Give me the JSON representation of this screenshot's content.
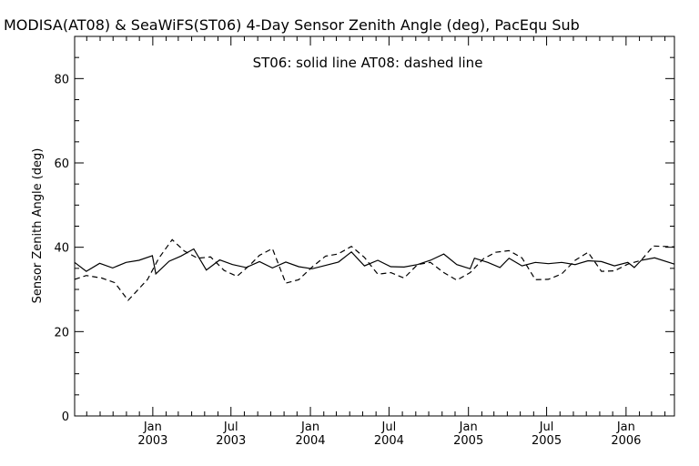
{
  "chart_data": {
    "type": "line",
    "title": "MODISA(AT08) & SeaWiFS(ST06) 4-Day Sensor Zenith Angle (deg), PacEqu Sub",
    "ylabel": "Sensor Zenith Angle (deg)",
    "xlabel": "",
    "legend_text": "ST06: solid line    AT08: dashed line",
    "ylim": [
      0,
      90
    ],
    "xlim": [
      "2002-07-04",
      "2006-04-23"
    ],
    "y_ticks": [
      "0",
      "20",
      "40",
      "60",
      "80"
    ],
    "y_tick_values": [
      0,
      20,
      40,
      60,
      80
    ],
    "x_ticks": [
      {
        "month": "Jan",
        "year": "2003",
        "date": "2003-01-01"
      },
      {
        "month": "Jul",
        "year": "2003",
        "date": "2003-07-01"
      },
      {
        "month": "Jan",
        "year": "2004",
        "date": "2004-01-01"
      },
      {
        "month": "Jul",
        "year": "2004",
        "date": "2004-07-01"
      },
      {
        "month": "Jan",
        "year": "2005",
        "date": "2005-01-01"
      },
      {
        "month": "Jul",
        "year": "2005",
        "date": "2005-07-01"
      },
      {
        "month": "Jan",
        "year": "2006",
        "date": "2006-01-01"
      }
    ],
    "grid": false,
    "series": [
      {
        "name": "ST06",
        "style": "solid",
        "color": "#000000",
        "points": [
          [
            "2002-07-04",
            36.4
          ],
          [
            "2002-07-31",
            34.3
          ],
          [
            "2002-08-31",
            36.2
          ],
          [
            "2002-09-30",
            35.1
          ],
          [
            "2002-10-31",
            36.4
          ],
          [
            "2002-11-30",
            36.9
          ],
          [
            "2002-12-31",
            38.0
          ],
          [
            "2003-01-08",
            33.7
          ],
          [
            "2003-02-08",
            36.7
          ],
          [
            "2003-03-07",
            37.9
          ],
          [
            "2003-04-06",
            39.6
          ],
          [
            "2003-05-05",
            34.6
          ],
          [
            "2003-06-05",
            37.0
          ],
          [
            "2003-07-05",
            35.9
          ],
          [
            "2003-08-05",
            35.2
          ],
          [
            "2003-09-05",
            36.6
          ],
          [
            "2003-10-05",
            35.1
          ],
          [
            "2003-11-05",
            36.5
          ],
          [
            "2003-12-05",
            35.4
          ],
          [
            "2004-01-05",
            34.9
          ],
          [
            "2004-02-05",
            35.7
          ],
          [
            "2004-03-06",
            36.5
          ],
          [
            "2004-04-05",
            38.9
          ],
          [
            "2004-05-05",
            35.6
          ],
          [
            "2004-06-05",
            36.9
          ],
          [
            "2004-07-05",
            35.4
          ],
          [
            "2004-08-05",
            35.3
          ],
          [
            "2004-09-05",
            35.9
          ],
          [
            "2004-10-05",
            36.9
          ],
          [
            "2004-11-05",
            38.4
          ],
          [
            "2004-12-05",
            35.9
          ],
          [
            "2005-01-05",
            34.9
          ],
          [
            "2005-01-15",
            37.4
          ],
          [
            "2005-02-15",
            36.4
          ],
          [
            "2005-03-15",
            35.2
          ],
          [
            "2005-04-05",
            37.4
          ],
          [
            "2005-05-05",
            35.6
          ],
          [
            "2005-06-05",
            36.4
          ],
          [
            "2005-07-05",
            36.1
          ],
          [
            "2005-08-05",
            36.4
          ],
          [
            "2005-09-05",
            35.9
          ],
          [
            "2005-10-05",
            36.8
          ],
          [
            "2005-11-05",
            36.6
          ],
          [
            "2005-12-05",
            35.6
          ],
          [
            "2006-01-05",
            36.4
          ],
          [
            "2006-01-20",
            35.2
          ],
          [
            "2006-02-05",
            36.9
          ],
          [
            "2006-03-08",
            37.5
          ],
          [
            "2006-04-23",
            36.0
          ]
        ]
      },
      {
        "name": "AT08",
        "style": "dashed",
        "color": "#000000",
        "points": [
          [
            "2002-07-04",
            32.4
          ],
          [
            "2002-07-31",
            33.3
          ],
          [
            "2002-09-05",
            32.7
          ],
          [
            "2002-10-05",
            31.6
          ],
          [
            "2002-11-05",
            27.4
          ],
          [
            "2002-12-20",
            32.4
          ],
          [
            "2003-01-15",
            37.4
          ],
          [
            "2003-02-15",
            41.8
          ],
          [
            "2003-03-15",
            39.1
          ],
          [
            "2003-04-15",
            37.4
          ],
          [
            "2003-05-15",
            37.7
          ],
          [
            "2003-06-15",
            34.5
          ],
          [
            "2003-07-15",
            33.1
          ],
          [
            "2003-08-15",
            35.9
          ],
          [
            "2003-09-05",
            38.1
          ],
          [
            "2003-10-05",
            39.7
          ],
          [
            "2003-11-05",
            31.5
          ],
          [
            "2003-12-05",
            32.3
          ],
          [
            "2004-01-05",
            35.3
          ],
          [
            "2004-02-05",
            37.9
          ],
          [
            "2004-03-05",
            38.4
          ],
          [
            "2004-04-05",
            40.2
          ],
          [
            "2004-05-05",
            37.6
          ],
          [
            "2004-06-05",
            33.6
          ],
          [
            "2004-07-05",
            34.0
          ],
          [
            "2004-08-05",
            32.7
          ],
          [
            "2004-09-05",
            35.9
          ],
          [
            "2004-10-05",
            36.4
          ],
          [
            "2004-11-05",
            34.0
          ],
          [
            "2004-12-05",
            32.2
          ],
          [
            "2005-01-05",
            34.0
          ],
          [
            "2005-02-05",
            37.3
          ],
          [
            "2005-03-05",
            38.8
          ],
          [
            "2005-04-05",
            39.2
          ],
          [
            "2005-05-05",
            37.5
          ],
          [
            "2005-06-05",
            32.3
          ],
          [
            "2005-07-05",
            32.4
          ],
          [
            "2005-08-05",
            33.7
          ],
          [
            "2005-09-05",
            36.9
          ],
          [
            "2005-10-05",
            38.8
          ],
          [
            "2005-11-05",
            34.3
          ],
          [
            "2005-12-05",
            34.4
          ],
          [
            "2006-01-05",
            36.0
          ],
          [
            "2006-02-05",
            36.9
          ],
          [
            "2006-03-05",
            40.3
          ],
          [
            "2006-04-23",
            40.1
          ]
        ]
      }
    ]
  }
}
